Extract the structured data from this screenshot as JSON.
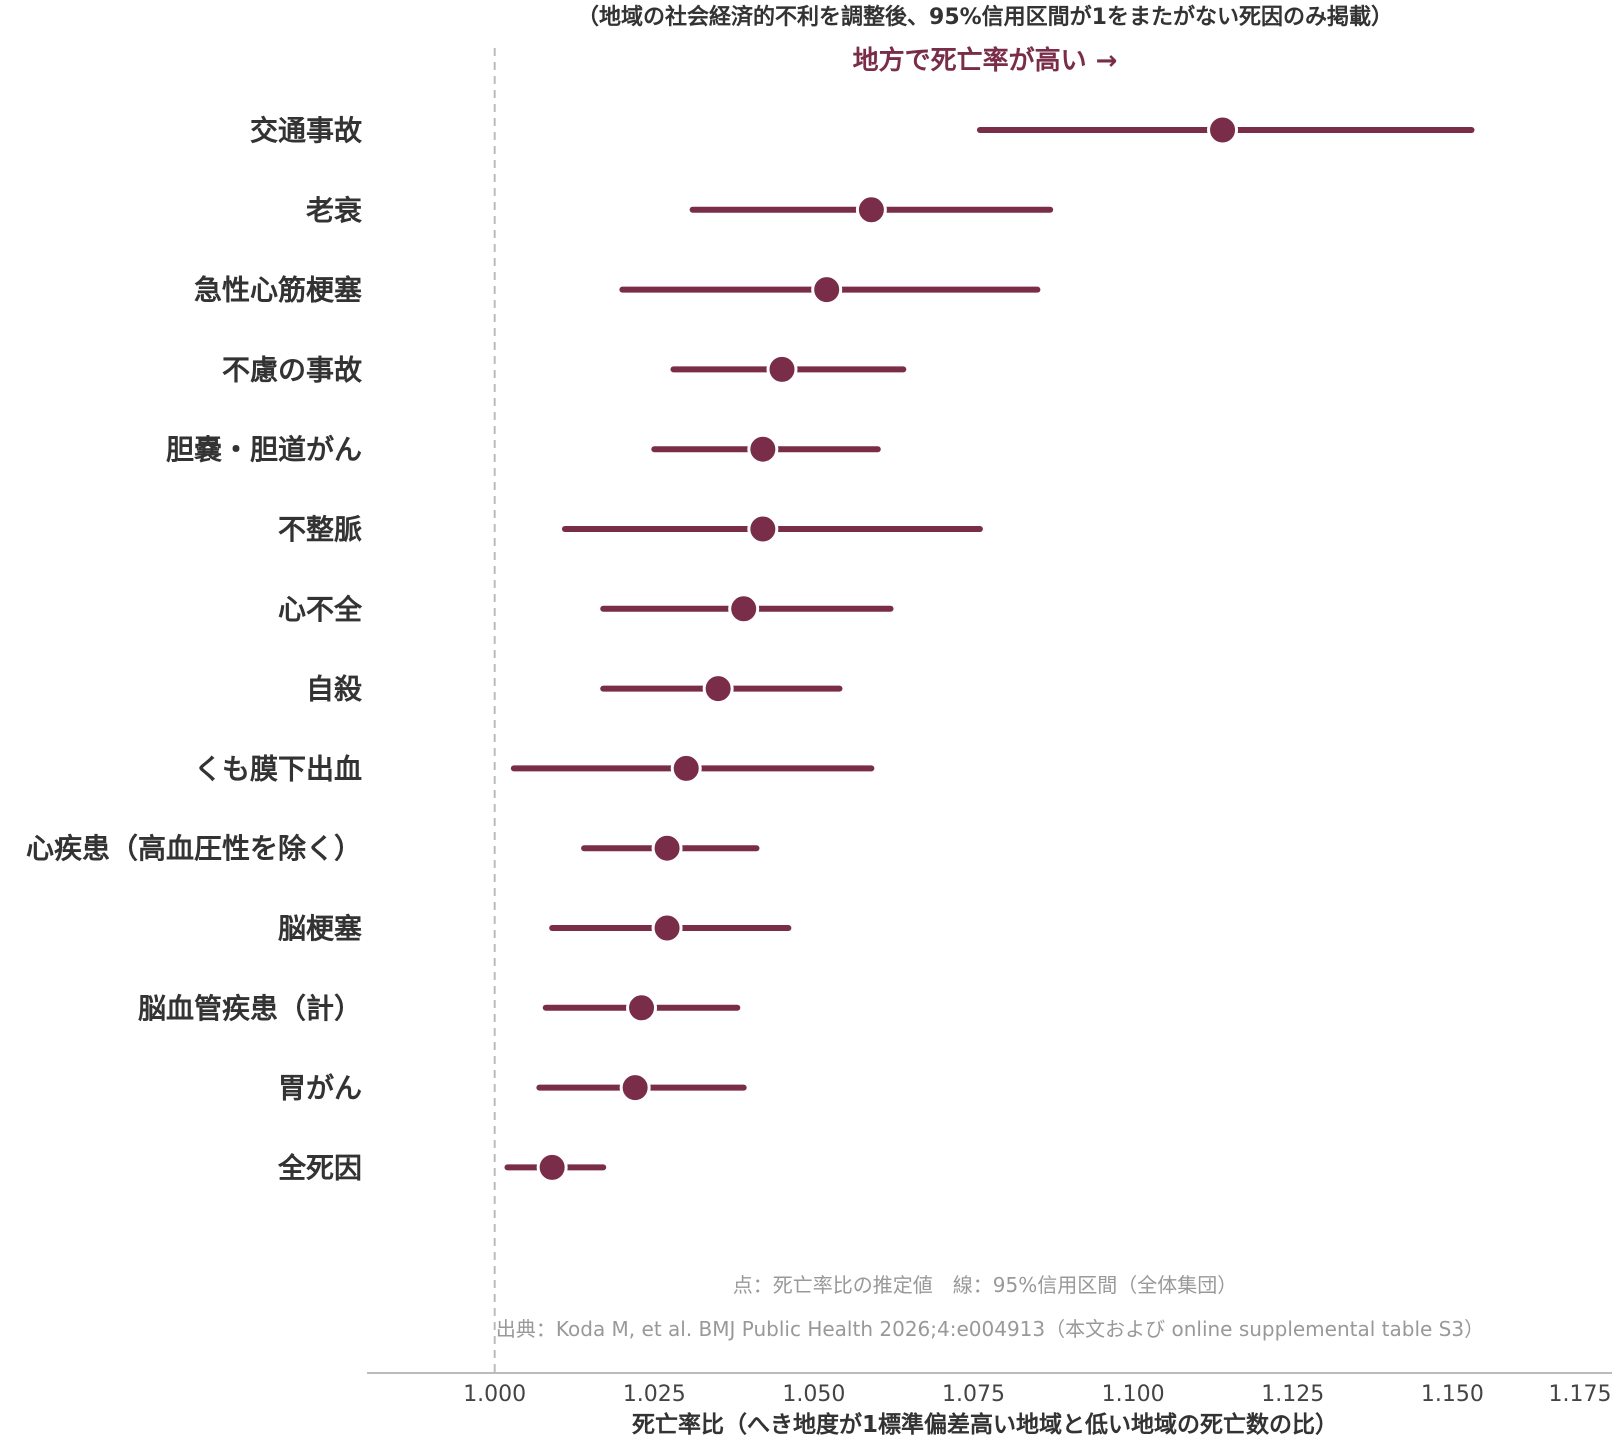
{
  "chart_data": {
    "type": "forest",
    "subtitle": "（地域の社会経済的不利を調整後、95%信用区間が1をまたがない死因のみ掲載）",
    "direction_label": "地方で死亡率が高い →",
    "xlabel": "死亡率比（へき地度が1標準偏差高い地域と低い地域の死亡数の比）",
    "xlim": [
      0.98,
      1.175
    ],
    "xticks": [
      1.0,
      1.025,
      1.05,
      1.075,
      1.1,
      1.125,
      1.15,
      1.175
    ],
    "xtick_labels": [
      "1.000",
      "1.025",
      "1.050",
      "1.075",
      "1.100",
      "1.125",
      "1.150",
      "1.175"
    ],
    "reference_line": 1.0,
    "categories": [
      "交通事故",
      "老衰",
      "急性心筋梗塞",
      "不慮の事故",
      "胆嚢・胆道がん",
      "不整脈",
      "心不全",
      "自殺",
      "くも膜下出血",
      "心疾患（高血圧性を除く）",
      "脳梗塞",
      "脳血管疾患（計）",
      "胃がん",
      "全死因"
    ],
    "estimates": [
      1.114,
      1.059,
      1.052,
      1.045,
      1.042,
      1.042,
      1.039,
      1.035,
      1.03,
      1.027,
      1.027,
      1.023,
      1.022,
      1.009
    ],
    "ci_low": [
      1.076,
      1.031,
      1.02,
      1.028,
      1.025,
      1.011,
      1.017,
      1.017,
      1.003,
      1.014,
      1.009,
      1.008,
      1.007,
      1.002
    ],
    "ci_high": [
      1.153,
      1.087,
      1.085,
      1.064,
      1.06,
      1.076,
      1.062,
      1.054,
      1.059,
      1.041,
      1.046,
      1.038,
      1.039,
      1.017
    ],
    "legend_note": "点：死亡率比の推定値　線：95%信用区間（全体集団）",
    "source": "出典：Koda M, et al. BMJ Public Health 2026;4:e004913（本文および online supplemental table S3）",
    "colors": {
      "series": "#7a2d48",
      "reference": "#bbbbbb",
      "axis": "#bbbbbb"
    }
  }
}
